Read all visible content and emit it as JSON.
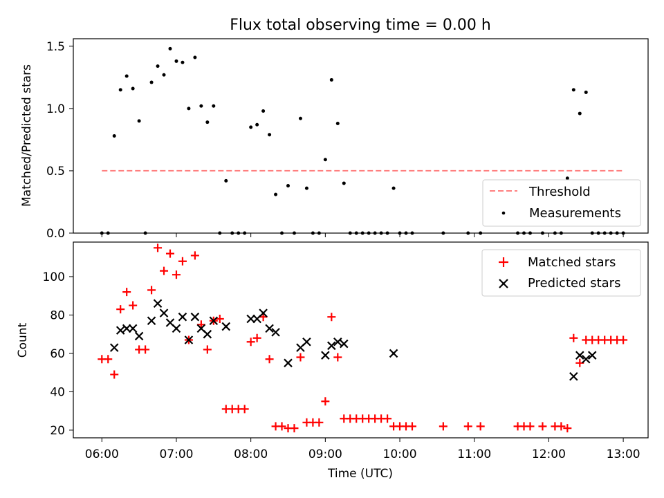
{
  "figure": {
    "title": "Flux total observing time = 0.00 h",
    "xlabel": "Time (UTC)"
  },
  "chart_data": [
    {
      "type": "scatter",
      "panel": "top",
      "ylabel": "Matched/Predicted stars",
      "xlim": [
        "05:37",
        "13:20"
      ],
      "ylim": [
        0,
        1.56
      ],
      "yticks": [
        "0.0",
        "0.5",
        "1.0",
        "1.5"
      ],
      "yticks_values": [
        0,
        0.5,
        1.0,
        1.5
      ],
      "legend_position": "lower right",
      "threshold": {
        "name": "Threshold",
        "value": 0.5,
        "x_start": "06:00",
        "x_end": "13:00",
        "color": "#ff7f7f",
        "style": "dashed"
      },
      "series": [
        {
          "name": "Measurements",
          "marker": "dot",
          "color": "#000000",
          "x": [
            "06:00",
            "06:05",
            "06:10",
            "06:15",
            "06:20",
            "06:25",
            "06:30",
            "06:35",
            "06:40",
            "06:45",
            "06:50",
            "06:55",
            "07:00",
            "07:05",
            "07:10",
            "07:15",
            "07:20",
            "07:25",
            "07:30",
            "07:35",
            "07:40",
            "07:45",
            "07:50",
            "07:55",
            "08:00",
            "08:05",
            "08:10",
            "08:15",
            "08:20",
            "08:25",
            "08:30",
            "08:35",
            "08:40",
            "08:45",
            "08:50",
            "08:55",
            "09:00",
            "09:05",
            "09:10",
            "09:15",
            "09:20",
            "09:25",
            "09:30",
            "09:35",
            "09:40",
            "09:45",
            "09:50",
            "09:55",
            "10:00",
            "10:05",
            "10:10",
            "10:35",
            "10:55",
            "11:05",
            "11:35",
            "11:40",
            "11:45",
            "11:55",
            "12:05",
            "12:10",
            "12:15",
            "12:20",
            "12:25",
            "12:30",
            "12:35",
            "12:40",
            "12:45",
            "12:50",
            "12:55",
            "13:00"
          ],
          "y": [
            0,
            0,
            0.78,
            1.15,
            1.26,
            1.16,
            0.9,
            0,
            1.21,
            1.34,
            1.27,
            1.48,
            1.38,
            1.37,
            1.0,
            1.41,
            1.02,
            0.89,
            1.02,
            0,
            0.42,
            0,
            0,
            0,
            0.85,
            0.87,
            0.98,
            0.79,
            0.31,
            0,
            0.38,
            0,
            0.92,
            0.36,
            0,
            0,
            0.59,
            1.23,
            0.88,
            0.4,
            0,
            0,
            0,
            0,
            0,
            0,
            0,
            0.36,
            0,
            0,
            0,
            0,
            0,
            0,
            0,
            0,
            0,
            0,
            0,
            0,
            0.44,
            1.15,
            0.96,
            1.13,
            0,
            0,
            0,
            0,
            0,
            0
          ]
        }
      ]
    },
    {
      "type": "scatter",
      "panel": "bottom",
      "ylabel": "Count",
      "xlim": [
        "05:37",
        "13:20"
      ],
      "ylim": [
        16,
        118
      ],
      "yticks": [
        "20",
        "40",
        "60",
        "80",
        "100"
      ],
      "yticks_values": [
        20,
        40,
        60,
        80,
        100
      ],
      "xticks": [
        "06:00",
        "07:00",
        "08:00",
        "09:00",
        "10:00",
        "11:00",
        "12:00",
        "13:00"
      ],
      "legend_position": "upper right",
      "series": [
        {
          "name": "Matched stars",
          "marker": "plus",
          "color": "#ff0000",
          "x": [
            "06:00",
            "06:05",
            "06:10",
            "06:15",
            "06:20",
            "06:25",
            "06:30",
            "06:35",
            "06:40",
            "06:45",
            "06:50",
            "06:55",
            "07:00",
            "07:05",
            "07:10",
            "07:15",
            "07:20",
            "07:25",
            "07:30",
            "07:35",
            "07:40",
            "07:45",
            "07:50",
            "07:55",
            "08:00",
            "08:05",
            "08:10",
            "08:15",
            "08:20",
            "08:25",
            "08:30",
            "08:35",
            "08:40",
            "08:45",
            "08:50",
            "08:55",
            "09:00",
            "09:05",
            "09:10",
            "09:15",
            "09:20",
            "09:25",
            "09:30",
            "09:35",
            "09:40",
            "09:45",
            "09:50",
            "09:55",
            "10:00",
            "10:05",
            "10:10",
            "10:35",
            "10:55",
            "11:05",
            "11:35",
            "11:40",
            "11:45",
            "11:55",
            "12:05",
            "12:10",
            "12:15",
            "12:20",
            "12:25",
            "12:30",
            "12:35",
            "12:40",
            "12:45",
            "12:50",
            "12:55",
            "13:00"
          ],
          "y": [
            57,
            57,
            49,
            83,
            92,
            85,
            62,
            62,
            93,
            115,
            103,
            112,
            101,
            108,
            67,
            111,
            75,
            62,
            77,
            78,
            31,
            31,
            31,
            31,
            66,
            68,
            79,
            57,
            22,
            22,
            21,
            21,
            58,
            24,
            24,
            24,
            35,
            79,
            58,
            26,
            26,
            26,
            26,
            26,
            26,
            26,
            26,
            22,
            22,
            22,
            22,
            22,
            22,
            22,
            22,
            22,
            22,
            22,
            22,
            22,
            21,
            68,
            55,
            67,
            67,
            67,
            67,
            67,
            67,
            67
          ]
        },
        {
          "name": "Predicted stars",
          "marker": "x",
          "color": "#000000",
          "x": [
            "06:10",
            "06:15",
            "06:20",
            "06:25",
            "06:30",
            "06:40",
            "06:45",
            "06:50",
            "06:55",
            "07:00",
            "07:05",
            "07:10",
            "07:15",
            "07:20",
            "07:25",
            "07:30",
            "07:40",
            "08:00",
            "08:05",
            "08:10",
            "08:15",
            "08:20",
            "08:30",
            "08:40",
            "08:45",
            "09:00",
            "09:05",
            "09:10",
            "09:15",
            "09:55",
            "12:20",
            "12:25",
            "12:30",
            "12:35"
          ],
          "y": [
            63,
            72,
            73,
            73,
            69,
            77,
            86,
            81,
            76,
            73,
            79,
            67,
            79,
            73,
            70,
            77,
            74,
            78,
            78,
            81,
            73,
            71,
            55,
            63,
            66,
            59,
            64,
            66,
            65,
            60,
            48,
            59,
            57,
            59
          ]
        }
      ]
    }
  ]
}
